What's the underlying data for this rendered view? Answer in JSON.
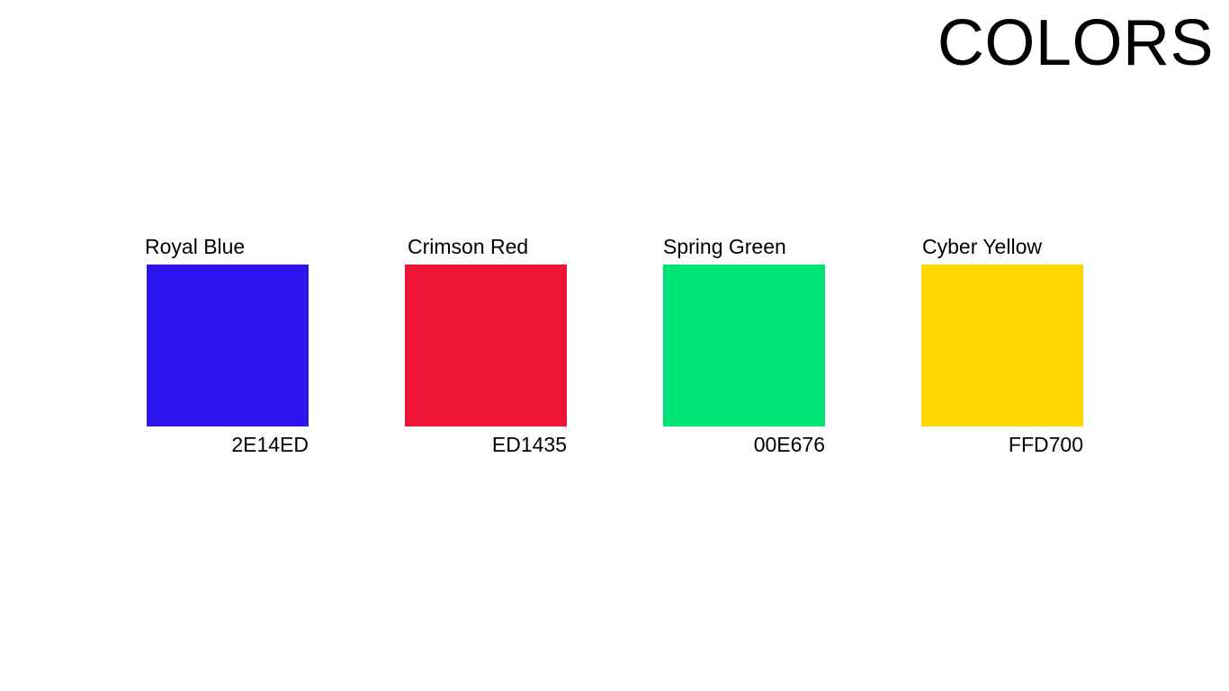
{
  "title": "COLORS",
  "swatches": [
    {
      "name": "Royal Blue",
      "hex": "2E14ED",
      "color": "#2E14ED"
    },
    {
      "name": "Crimson Red",
      "hex": "ED1435",
      "color": "#ED1435"
    },
    {
      "name": "Spring Green",
      "hex": "00E676",
      "color": "#00E676"
    },
    {
      "name": "Cyber Yellow",
      "hex": "FFD700",
      "color": "#FFD700"
    }
  ]
}
